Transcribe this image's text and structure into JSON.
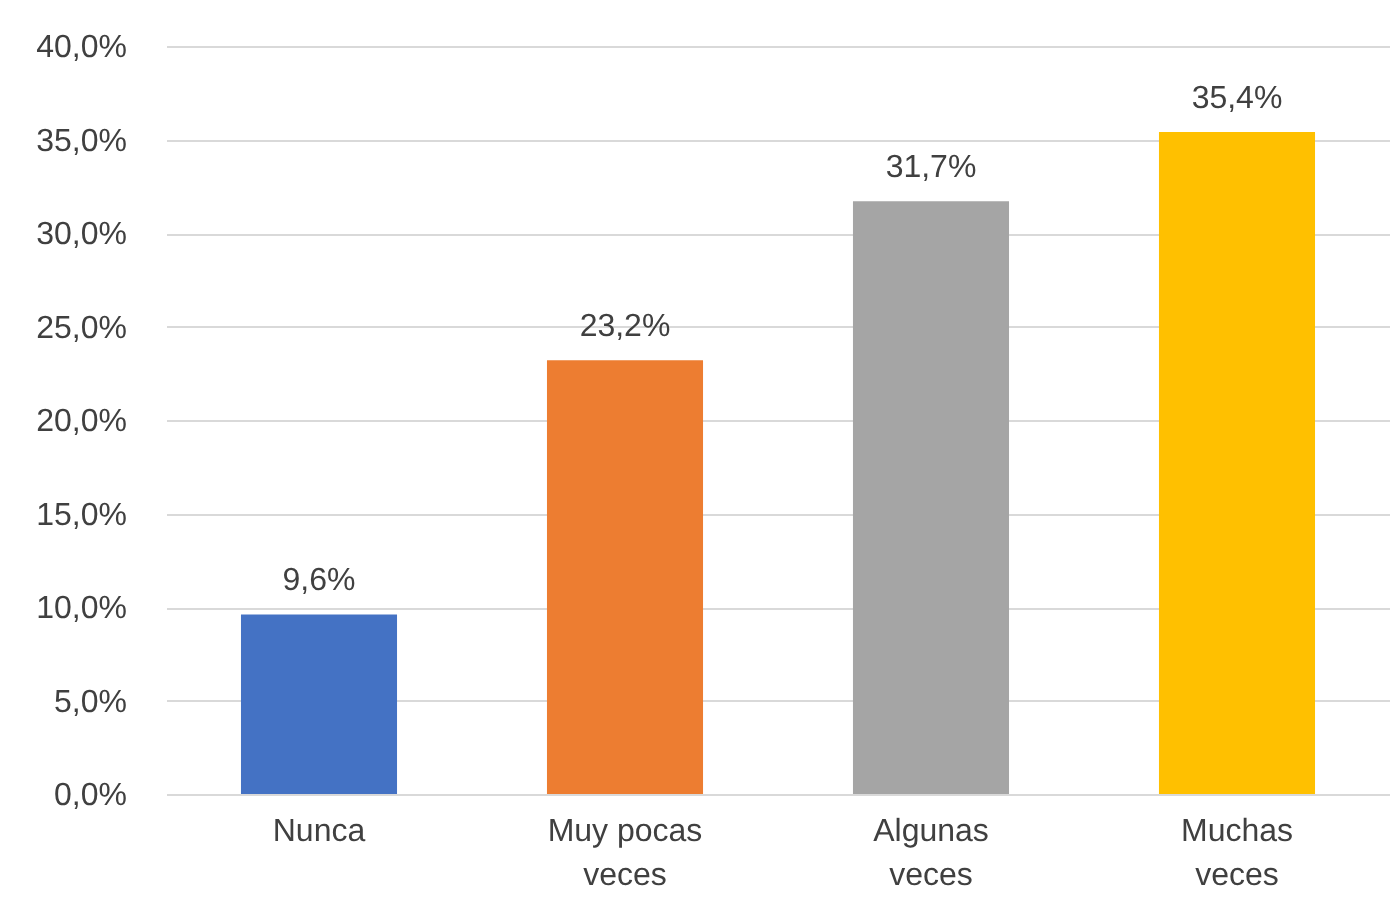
{
  "chart_data": {
    "type": "bar",
    "categories": [
      "Nunca",
      "Muy pocas veces",
      "Algunas veces",
      "Muchas veces"
    ],
    "values": [
      9.6,
      23.2,
      31.7,
      35.4
    ],
    "value_labels": [
      "9,6%",
      "23,2%",
      "31,7%",
      "35,4%"
    ],
    "colors": [
      "#4472c4",
      "#ed7d31",
      "#a5a5a5",
      "#ffc000"
    ],
    "ylim": [
      0,
      40
    ],
    "yticks": [
      {
        "value": 0,
        "label": "0,0%"
      },
      {
        "value": 5,
        "label": "5,0%"
      },
      {
        "value": 10,
        "label": "10,0%"
      },
      {
        "value": 15,
        "label": "15,0%"
      },
      {
        "value": 20,
        "label": "20,0%"
      },
      {
        "value": 25,
        "label": "25,0%"
      },
      {
        "value": 30,
        "label": "30,0%"
      },
      {
        "value": 35,
        "label": "35,0%"
      },
      {
        "value": 40,
        "label": "40,0%"
      }
    ],
    "grid": true
  }
}
